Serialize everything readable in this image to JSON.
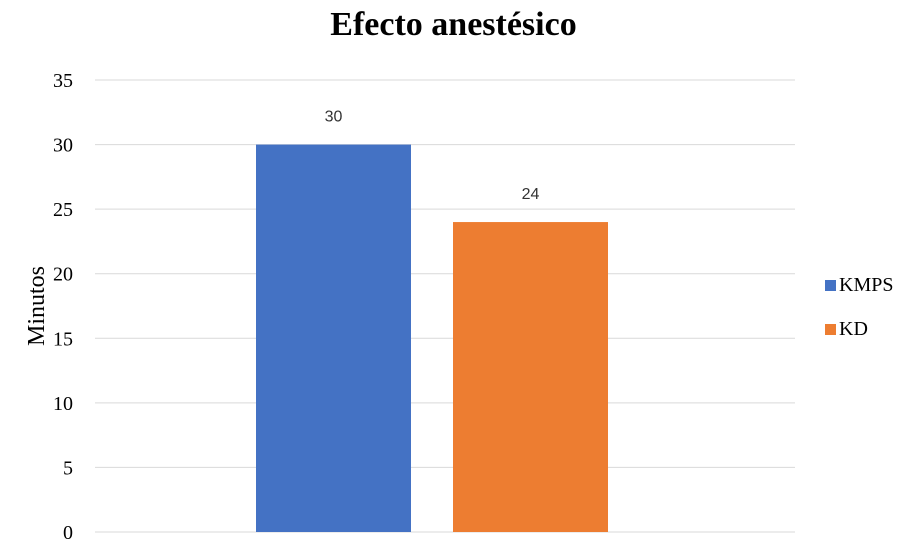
{
  "chart_data": {
    "type": "bar",
    "title": "Efecto anestésico",
    "xlabel": "",
    "ylabel": "Minutos",
    "ylim": [
      0,
      35
    ],
    "yticks": [
      0,
      5,
      10,
      15,
      20,
      25,
      30,
      35
    ],
    "grid": true,
    "legend_position": "right",
    "series": [
      {
        "name": "KMPS",
        "values": [
          30
        ],
        "color": "#4472C4"
      },
      {
        "name": "KD",
        "values": [
          24
        ],
        "color": "#ED7D31"
      }
    ],
    "data_labels": [
      "30",
      "24"
    ]
  }
}
